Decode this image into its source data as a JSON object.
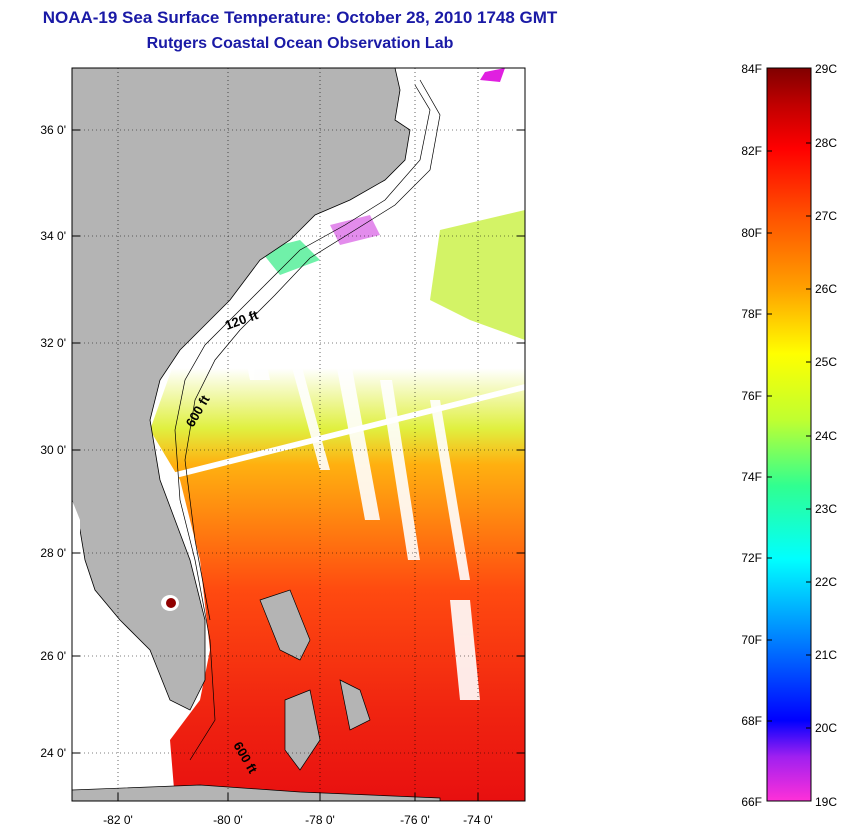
{
  "header": {
    "title": "NOAA-19 Sea Surface Temperature:  October 28, 2010 1748 GMT",
    "subtitle": "Rutgers Coastal Ocean Observation Lab"
  },
  "map": {
    "lat_labels": [
      "36 0'",
      "34 0'",
      "32 0'",
      "30 0'",
      "28 0'",
      "26 0'",
      "24 0'"
    ],
    "lon_labels": [
      "-82 0'",
      "-80 0'",
      "-78 0'",
      "-76 0'",
      "-74 0'"
    ],
    "lat_range": [
      23,
      37
    ],
    "lon_range": [
      -83,
      -73
    ],
    "contour_labels": [
      "120 ft",
      "600 ft",
      "600 ft"
    ],
    "land_color": "#b4b4b4",
    "cloud_color": "#ffffff"
  },
  "colorbar": {
    "fahrenheit_labels": [
      "84F",
      "82F",
      "80F",
      "78F",
      "76F",
      "74F",
      "72F",
      "70F",
      "68F",
      "66F"
    ],
    "celsius_labels": [
      "29C",
      "28C",
      "27C",
      "26C",
      "25C",
      "24C",
      "23C",
      "22C",
      "21C",
      "20C",
      "19C"
    ],
    "range_celsius": [
      19,
      29
    ],
    "stops": [
      "#ff30d8",
      "#a020f0",
      "#0000ff",
      "#0080ff",
      "#00ffff",
      "#30ff90",
      "#c0ff30",
      "#ffff00",
      "#ffa000",
      "#ff5000",
      "#ff0000",
      "#c00000",
      "#800000"
    ]
  }
}
